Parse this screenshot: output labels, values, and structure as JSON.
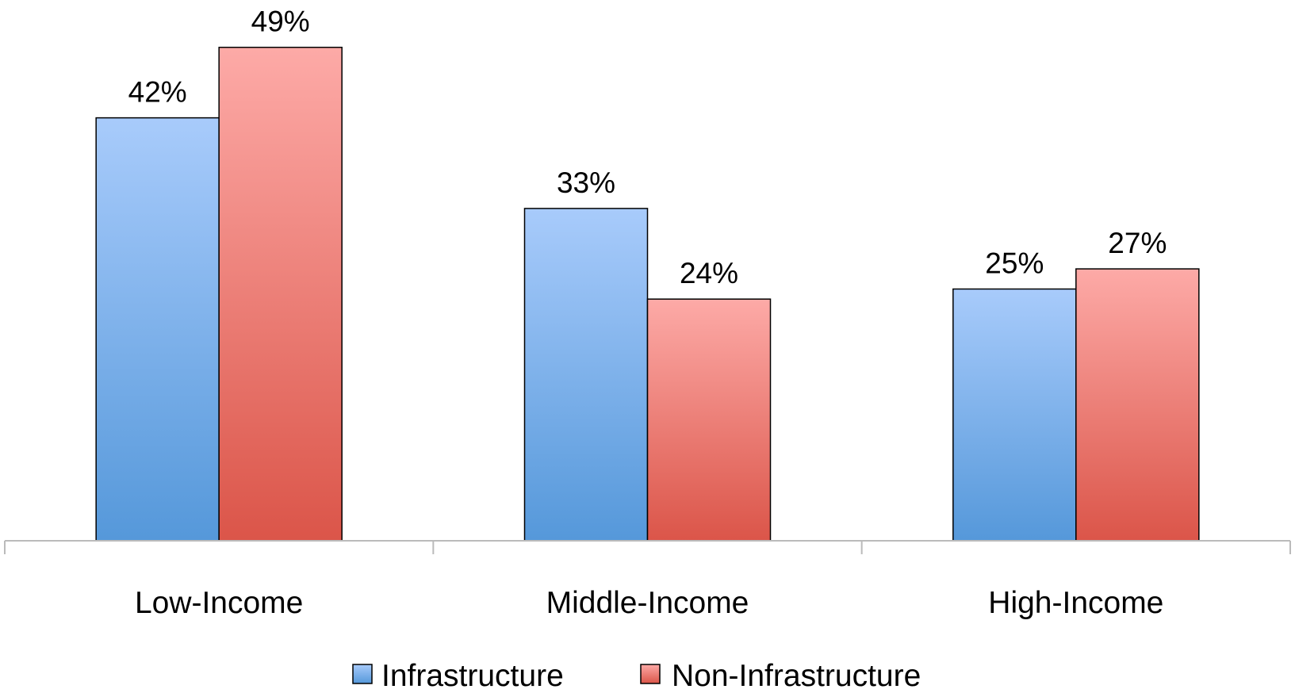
{
  "chart_data": {
    "type": "bar",
    "categories": [
      "Low-Income",
      "Middle-Income",
      "High-Income"
    ],
    "series": [
      {
        "name": "Infrastructure",
        "values": [
          42,
          33,
          25
        ],
        "labels": [
          "42%",
          "33%",
          "25%"
        ],
        "color": "#7fb2ee"
      },
      {
        "name": "Non-Infrastructure",
        "values": [
          49,
          24,
          27
        ],
        "labels": [
          "49%",
          "24%",
          "27%"
        ],
        "color": "#ef8a84"
      }
    ],
    "title": "",
    "xlabel": "",
    "ylabel": "",
    "ylim": [
      0,
      50
    ],
    "grid": false,
    "legend": "bottom",
    "value_axis_visible": false
  },
  "colors": {
    "infra_top": "#a8cbfb",
    "infra_bottom": "#5598da",
    "noninfra_top": "#fdaaa7",
    "noninfra_bottom": "#db5549",
    "axis": "#bbbbbb",
    "bar_outline": "#000000"
  }
}
